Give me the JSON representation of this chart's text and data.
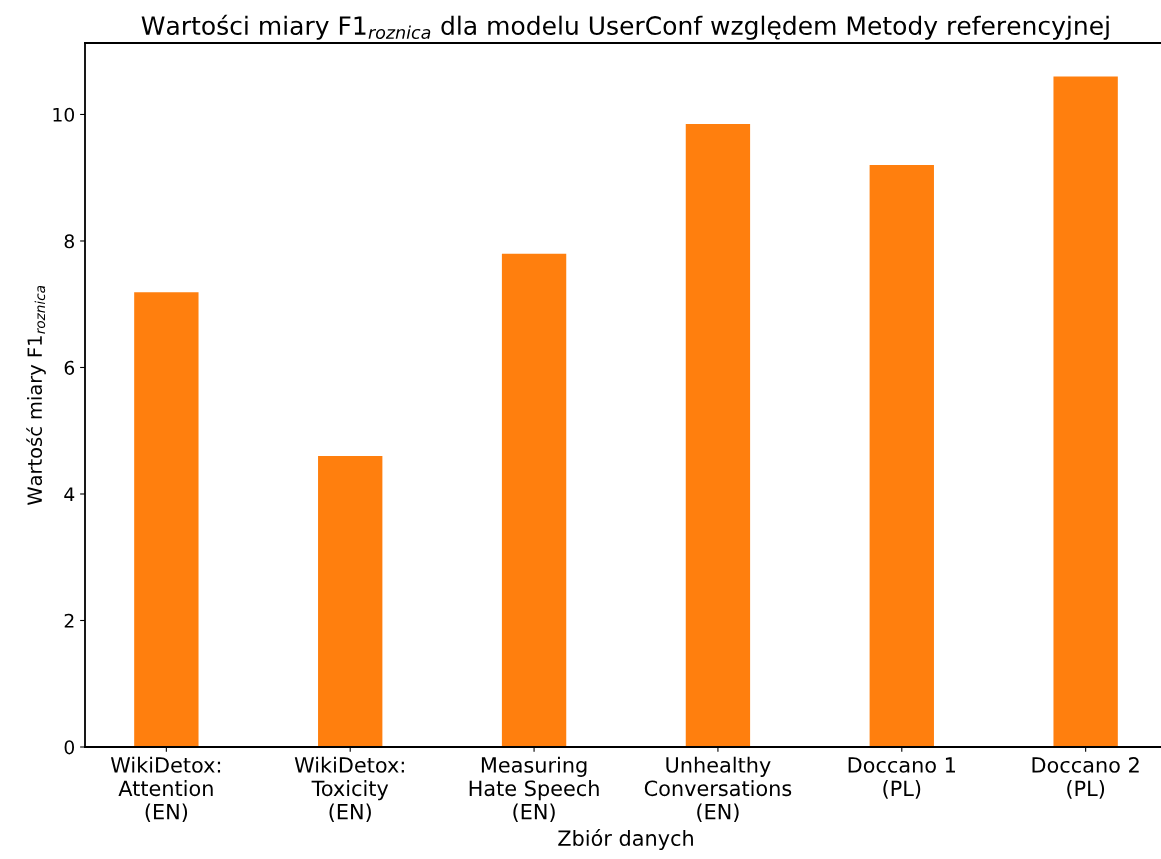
{
  "chart_data": {
    "type": "bar",
    "title": "Wartości miary F1$_{roznica}$ dla modelu UserConf względem Metody referencyjnej",
    "xlabel": "Zbiór danych",
    "ylabel": "Wartość miary F1$_{roznica}$",
    "categories": [
      "WikiDetox:\nAttention\n(EN)",
      "WikiDetox:\nToxicity\n(EN)",
      "Measuring\nHate Speech\n(EN)",
      "Unhealthy\nConversations\n(EN)",
      "Doccano 1\n(PL)",
      "Doccano 2\n(PL)"
    ],
    "values": [
      7.19,
      4.6,
      7.8,
      9.85,
      9.2,
      10.6
    ],
    "color": "#ff7f0e",
    "ylim": [
      0,
      11.13
    ],
    "yticks": [
      0,
      2,
      4,
      6,
      8,
      10
    ],
    "grid": false,
    "legend": false
  }
}
